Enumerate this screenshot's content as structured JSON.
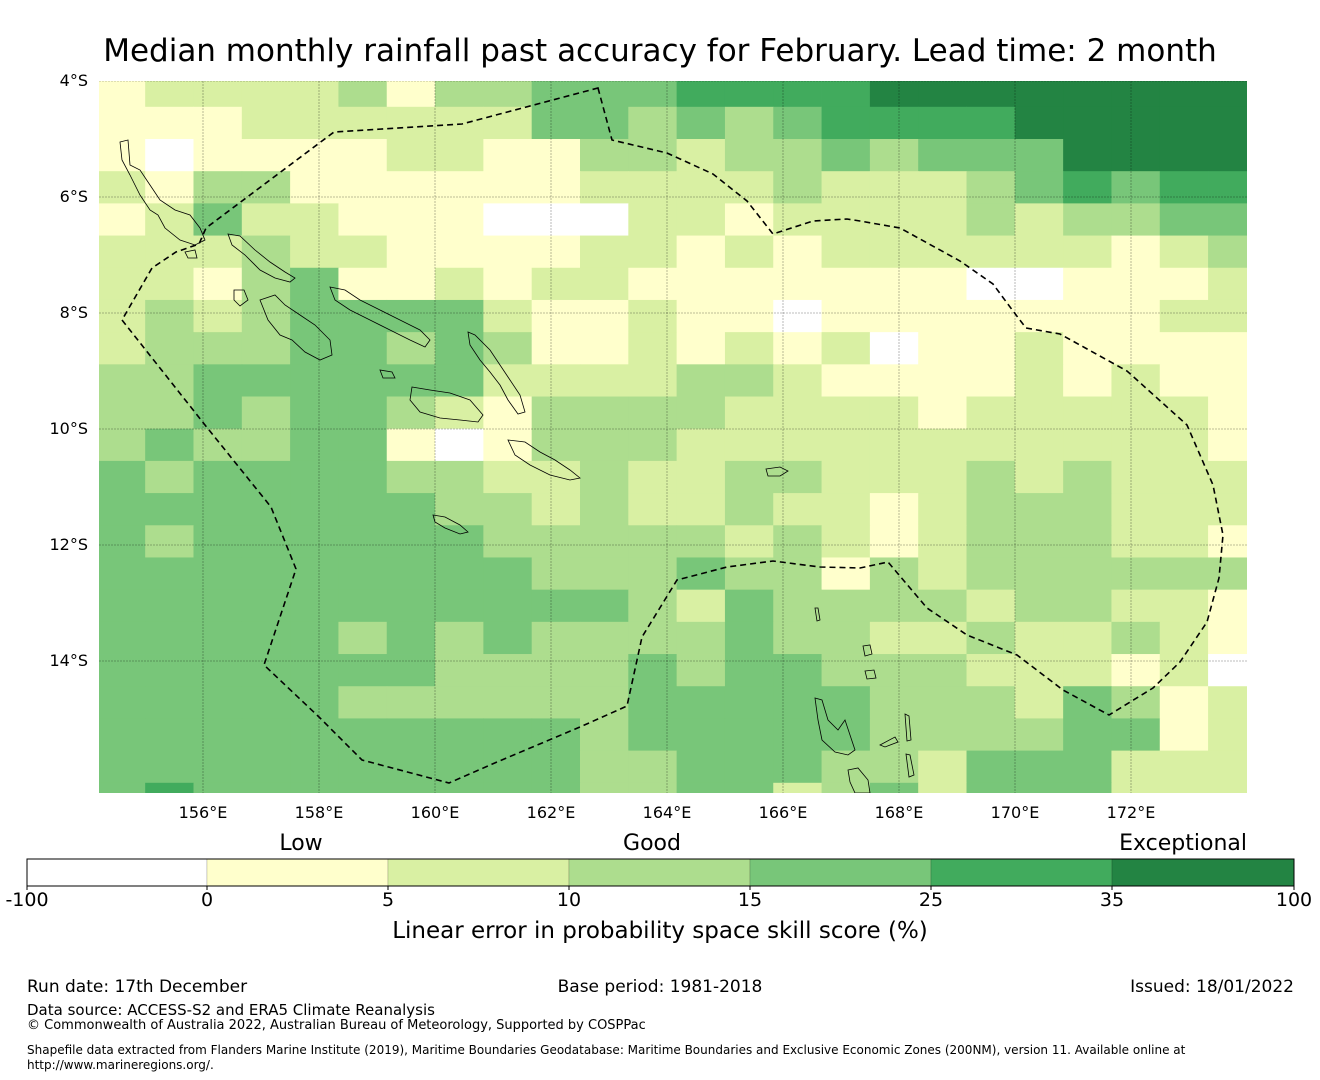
{
  "title": "Median monthly rainfall past accuracy for February. Lead time: 2 month",
  "axes": {
    "lat_ticks": [
      {
        "value": -4,
        "label": "4°S"
      },
      {
        "value": -6,
        "label": "6°S"
      },
      {
        "value": -8,
        "label": "8°S"
      },
      {
        "value": -10,
        "label": "10°S"
      },
      {
        "value": -12,
        "label": "12°S"
      },
      {
        "value": -14,
        "label": "14°S"
      }
    ],
    "lon_ticks": [
      {
        "value": 156,
        "label": "156°E"
      },
      {
        "value": 158,
        "label": "158°E"
      },
      {
        "value": 160,
        "label": "160°E"
      },
      {
        "value": 162,
        "label": "162°E"
      },
      {
        "value": 164,
        "label": "164°E"
      },
      {
        "value": 166,
        "label": "166°E"
      },
      {
        "value": 168,
        "label": "168°E"
      },
      {
        "value": 170,
        "label": "170°E"
      },
      {
        "value": 172,
        "label": "172°E"
      }
    ]
  },
  "colorbar": {
    "categories": {
      "low": "Low",
      "good": "Good",
      "exceptional": "Exceptional"
    },
    "boundaries": [
      "-100",
      "0",
      "5",
      "10",
      "15",
      "25",
      "35",
      "100"
    ],
    "colors": [
      "#ffffff",
      "#ffffcc",
      "#d9f0a3",
      "#addd8e",
      "#78c679",
      "#41ab5d",
      "#238443"
    ],
    "label": "Linear error in probability space skill score (%)"
  },
  "chart_data": {
    "type": "heatmap",
    "lon_range": [
      154.2,
      174.0
    ],
    "lat_range": [
      -16.3,
      -4.0
    ],
    "cell_origin": {
      "lon": 154.17,
      "lat": -3.89
    },
    "cell_size_deg": {
      "lon": 0.833,
      "lat": 0.555
    },
    "value_encoding": "each digit = colorbar bin index (0: -100..0, 1: 0..5, 2: 5..10, 3: 10..15, 4: 15..25, 5: 25..35, 6: 35..100)",
    "rows": [
      "122223133444555566666666",
      "111222222443434555566666",
      "101111221133233434446666",
      "213311111122223222345455",
      "124221110002212222323344",
      "222322111122121222222123",
      "221341121221111111001112",
      "232344442112110111111122",
      "233344343112121201121111",
      "334444442222332111121211",
      "334344321333322221222221",
      "343344101333222222222221",
      "434444332232233222323222",
      "444444433232232212333222",
      "434444443333323212333221",
      "444444444333433132333333",
      "444444444443243333233221",
      "444443434333343322322321",
      "444444433334344333222120",
      "444443333334444433324312",
      "444444444434444433334412",
      "444444444433444332444222",
      "454444444433442342444222"
    ]
  },
  "footer": {
    "run_date": "Run date: 17th December",
    "base_period": "Base period: 1981-2018",
    "issued": "Issued: 18/01/2022",
    "data_source": "Data source: ACCESS-S2 and ERA5 Climate Reanalysis",
    "copyright": "© Commonwealth of Australia 2022, Australian Bureau of Meteorology, Supported by COSPPac",
    "shapefile_line1": "Shapefile data extracted from Flanders Marine Institute (2019), Maritime Boundaries Geodatabase: Maritime Boundaries and Exclusive Economic Zones (200NM), version 11. Available online at",
    "shapefile_line2": "http://www.marineregions.org/."
  }
}
